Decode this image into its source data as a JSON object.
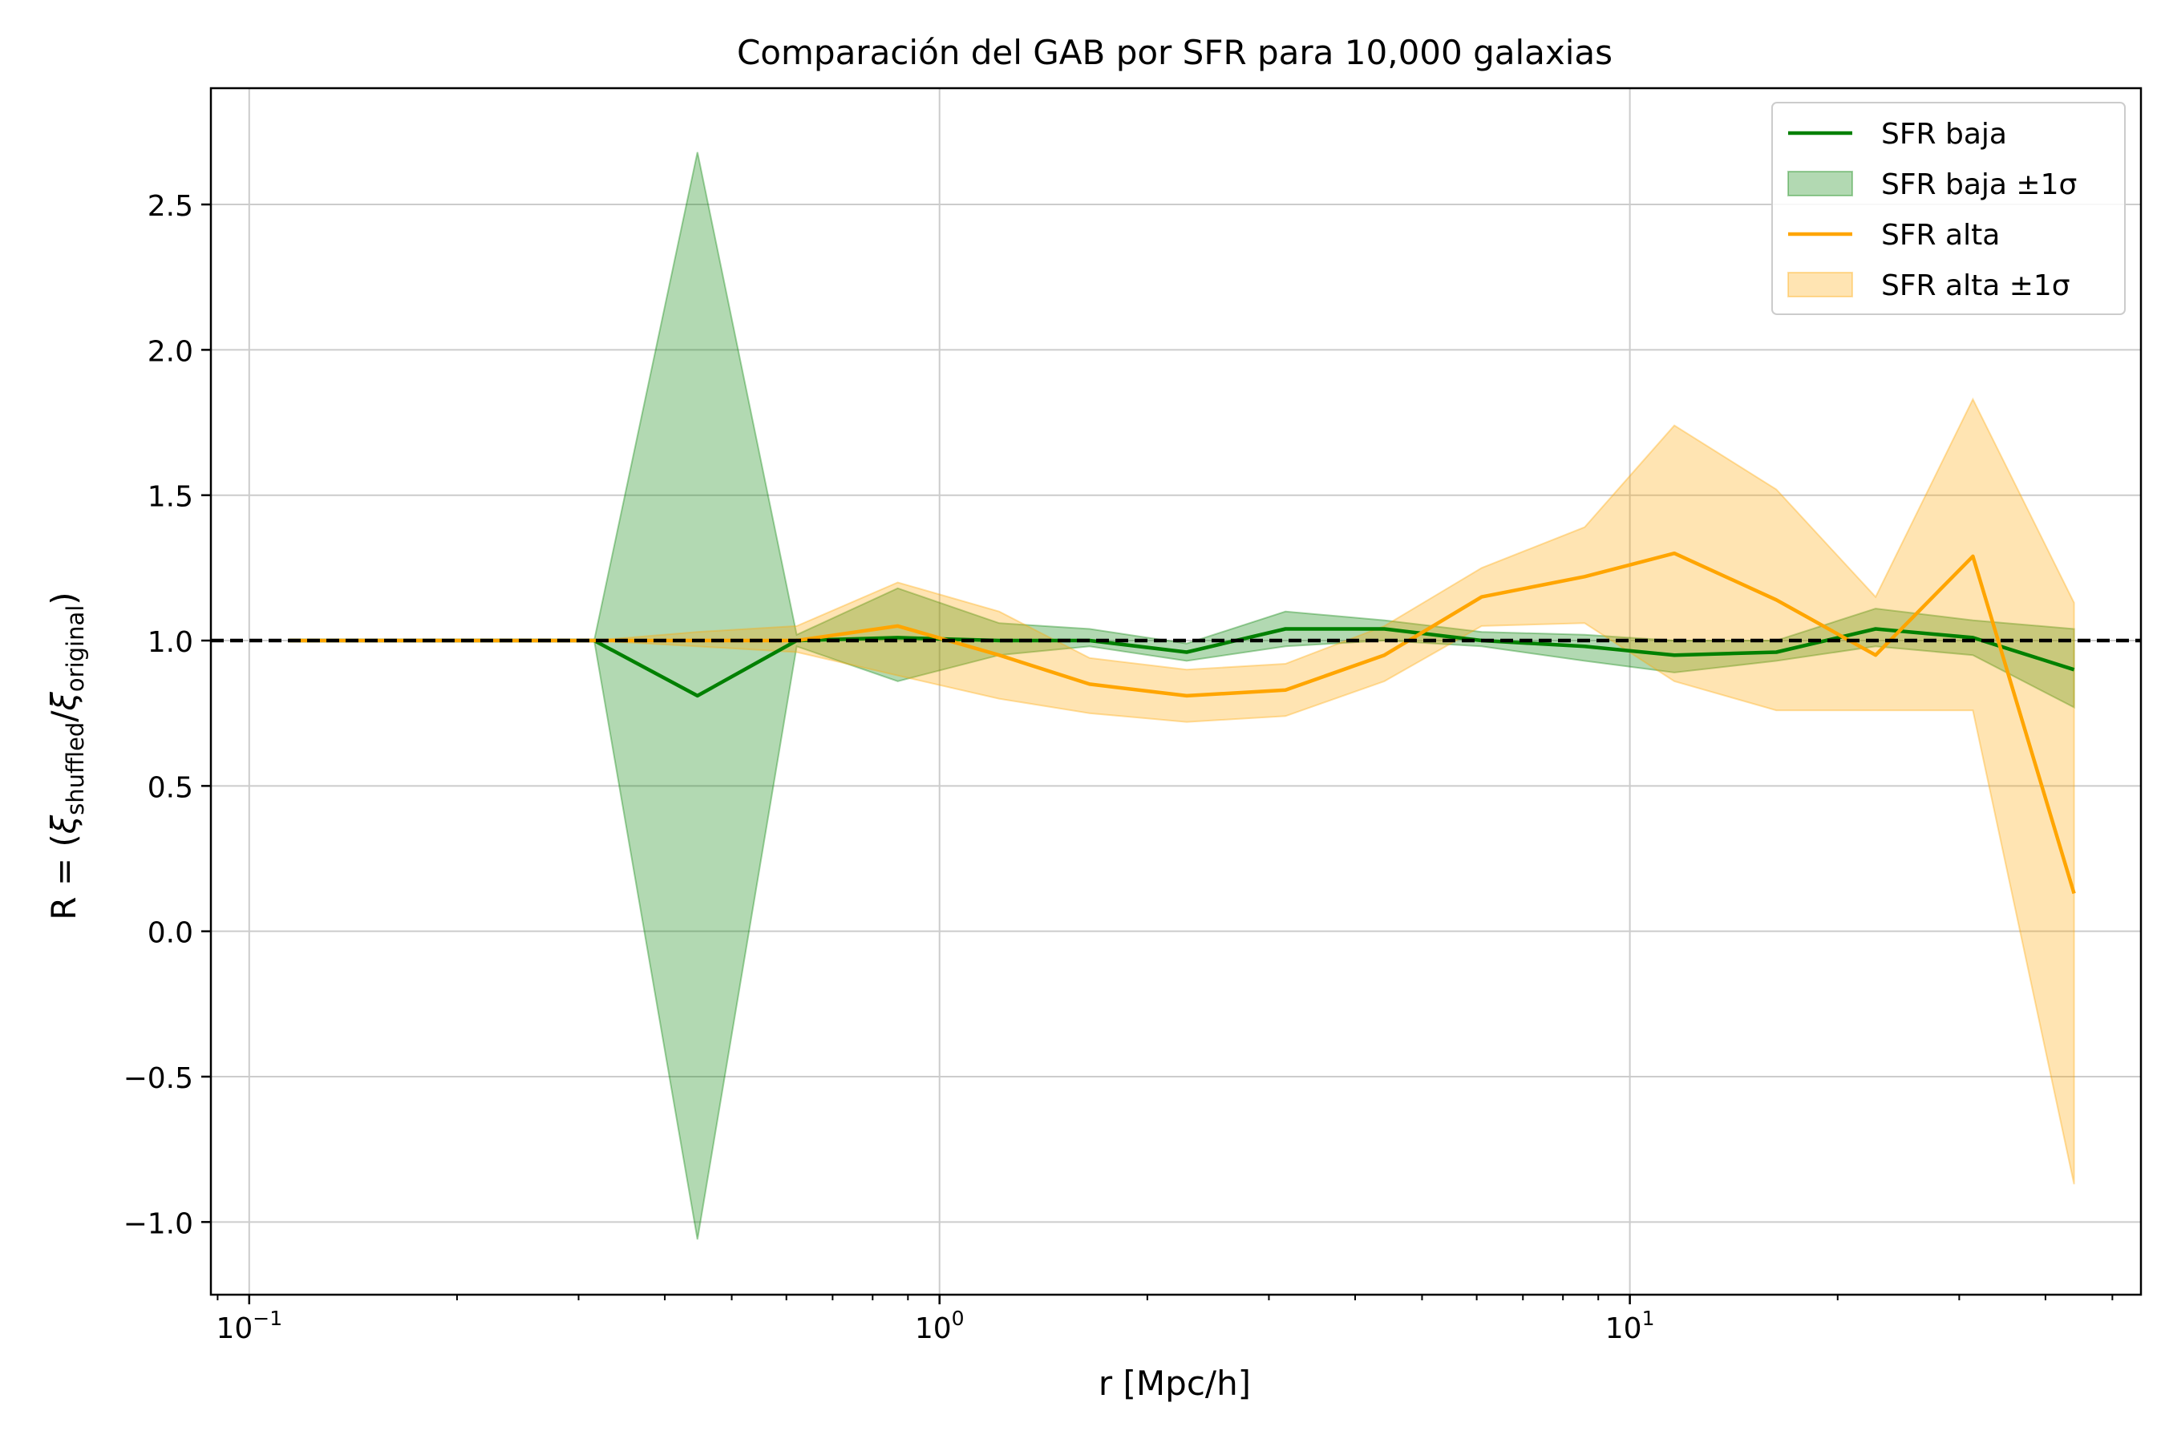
{
  "chart_data": {
    "type": "line",
    "title": "Comparación del GAB por SFR para 10,000 galaxias",
    "xlabel": "r [Mpc/h]",
    "ylabel": {
      "prefix": "R = (",
      "num_symbol": "ξ",
      "num_sub": "shuffled",
      "slash": "/",
      "den_symbol": "ξ",
      "den_sub": "original",
      "suffix": ")"
    },
    "xscale": "log",
    "xlim": [
      0.088,
      55
    ],
    "ylim": [
      -1.25,
      2.9
    ],
    "grid": true,
    "legend_position": "top-right",
    "xticks": [
      {
        "value": 0.1,
        "base": "10",
        "exp": "−1"
      },
      {
        "value": 1,
        "base": "10",
        "exp": "0"
      },
      {
        "value": 10,
        "base": "10",
        "exp": "1"
      }
    ],
    "yticks": [
      {
        "value": -1.0,
        "label": "−1.0"
      },
      {
        "value": -0.5,
        "label": "−0.5"
      },
      {
        "value": 0.0,
        "label": "0.0"
      },
      {
        "value": 0.5,
        "label": "0.5"
      },
      {
        "value": 1.0,
        "label": "1.0"
      },
      {
        "value": 1.5,
        "label": "1.5"
      },
      {
        "value": 2.0,
        "label": "2.0"
      },
      {
        "value": 2.5,
        "label": "2.5"
      }
    ],
    "reference_line": {
      "y": 1.0,
      "color": "#000000",
      "style": "dashed"
    },
    "x": [
      0.114,
      0.16,
      0.225,
      0.316,
      0.446,
      0.621,
      0.87,
      1.22,
      1.65,
      2.28,
      3.17,
      4.41,
      6.1,
      8.6,
      11.6,
      16.3,
      22.7,
      31.4,
      44.0
    ],
    "series": [
      {
        "name": "SFR baja",
        "band_name": "SFR baja ±1σ",
        "color": "#008000",
        "band_color": "#008000",
        "band_opacity": 0.3,
        "values": [
          1.0,
          1.0,
          1.0,
          1.0,
          0.81,
          1.0,
          1.01,
          1.0,
          1.0,
          0.96,
          1.04,
          1.04,
          1.0,
          0.98,
          0.95,
          0.96,
          1.04,
          1.01,
          0.9
        ],
        "lower": [
          1.0,
          1.0,
          1.0,
          1.0,
          -1.06,
          0.98,
          0.86,
          0.95,
          0.98,
          0.93,
          0.98,
          1.0,
          0.98,
          0.93,
          0.89,
          0.93,
          0.98,
          0.95,
          0.77
        ],
        "upper": [
          1.0,
          1.0,
          1.0,
          1.0,
          2.68,
          1.02,
          1.18,
          1.06,
          1.04,
          0.99,
          1.1,
          1.07,
          1.03,
          1.02,
          1.0,
          1.0,
          1.11,
          1.07,
          1.04
        ]
      },
      {
        "name": "SFR alta",
        "band_name": "SFR alta ±1σ",
        "color": "#ffa500",
        "band_color": "#ffa500",
        "band_opacity": 0.3,
        "values": [
          1.0,
          1.0,
          1.0,
          1.0,
          1.0,
          1.0,
          1.05,
          0.95,
          0.85,
          0.81,
          0.83,
          0.95,
          1.15,
          1.22,
          1.3,
          1.14,
          0.95,
          1.29,
          0.13
        ],
        "lower": [
          1.0,
          1.0,
          1.0,
          1.0,
          0.98,
          0.96,
          0.88,
          0.8,
          0.75,
          0.72,
          0.74,
          0.86,
          1.05,
          1.06,
          0.86,
          0.76,
          0.76,
          0.76,
          -0.87
        ],
        "upper": [
          1.0,
          1.0,
          1.0,
          1.0,
          1.03,
          1.05,
          1.2,
          1.1,
          0.94,
          0.9,
          0.92,
          1.05,
          1.25,
          1.39,
          1.74,
          1.52,
          1.15,
          1.83,
          1.13
        ]
      }
    ]
  }
}
